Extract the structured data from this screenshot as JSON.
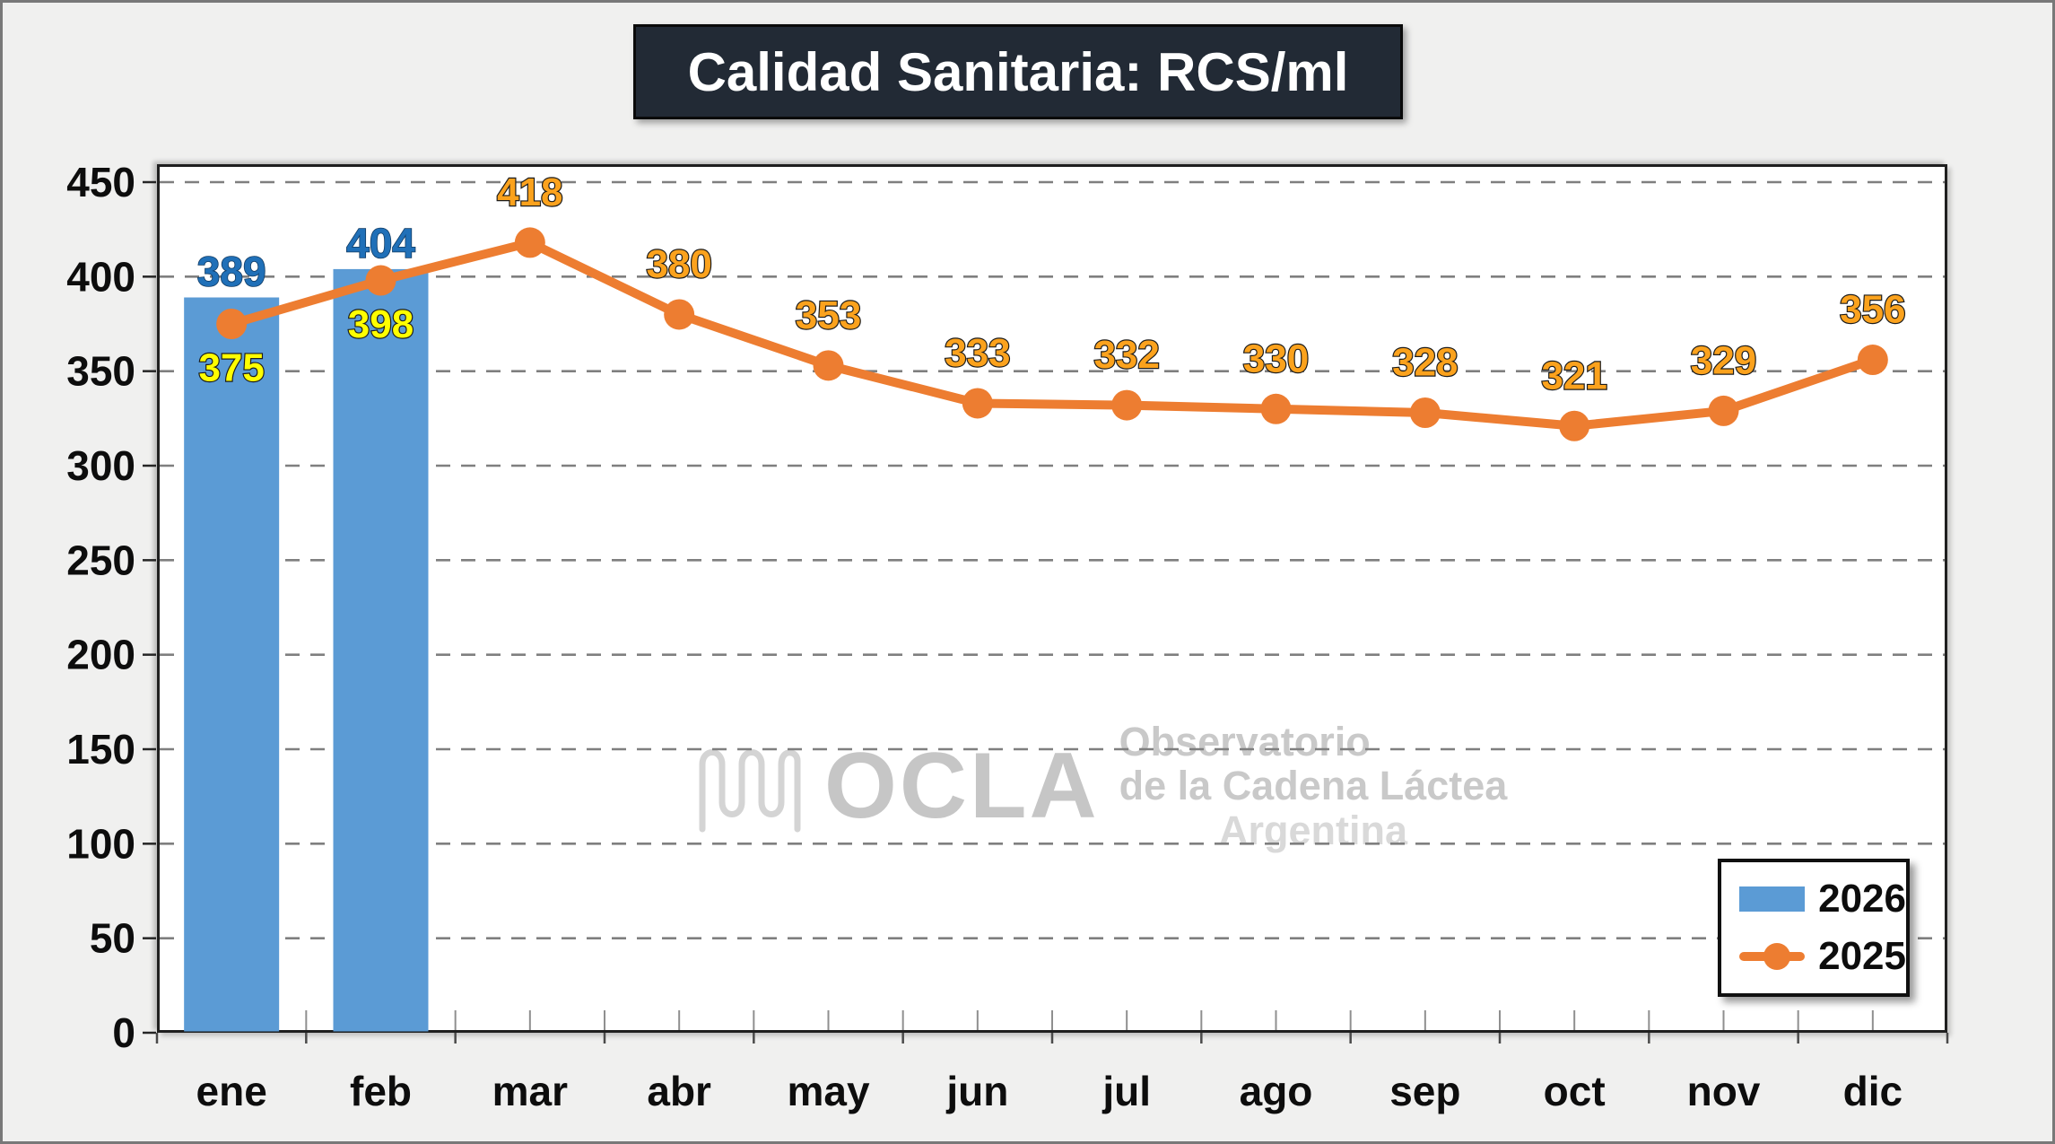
{
  "title": {
    "text": "Calidad Sanitaria: RCS/ml",
    "bg": "#222a35",
    "color": "#ffffff"
  },
  "watermark": {
    "logo": "ocla-wave-logo",
    "brand": "OCLA",
    "lines": [
      "Observatorio",
      "de la Cadena Láctea",
      "Argentina"
    ]
  },
  "legend": {
    "position": "bottom-right",
    "items": [
      {
        "label": "2026",
        "marker": "bar",
        "color": "#5b9bd5"
      },
      {
        "label": "2025",
        "marker": "line-dot",
        "color": "#ed7d31"
      }
    ]
  },
  "colors": {
    "bar_fill": "#5b9bd5",
    "line_stroke": "#ed7d31",
    "bar_value_label": "#2070b8",
    "line_value_label": "#fba21d",
    "line_value_label_on_bar": "#ffff00",
    "label_outline": "#1c1c1c",
    "gridline": "#7f7f7f",
    "axis_text": "#0d0d0d",
    "plot_bg": "#ffffff",
    "page_bg": "#f0f0ef"
  },
  "chart_data": {
    "type": "combo",
    "title": "Calidad Sanitaria: RCS/ml",
    "categories": [
      "ene",
      "feb",
      "mar",
      "abr",
      "may",
      "jun",
      "jul",
      "ago",
      "sep",
      "oct",
      "nov",
      "dic"
    ],
    "series": [
      {
        "name": "2026",
        "type": "bar",
        "color": "#5b9bd5",
        "label_color": "#2070b8",
        "values": [
          389,
          404,
          null,
          null,
          null,
          null,
          null,
          null,
          null,
          null,
          null,
          null
        ]
      },
      {
        "name": "2025",
        "type": "line",
        "color": "#ed7d31",
        "label_color": "#fba21d",
        "label_color_on_bar": "#ffff00",
        "values": [
          375,
          398,
          418,
          380,
          353,
          333,
          332,
          330,
          328,
          321,
          329,
          356
        ]
      }
    ],
    "ylim": [
      0,
      450
    ],
    "ytick_step": 50,
    "grid": "horizontal-dashed",
    "legend_position": "bottom-right"
  }
}
